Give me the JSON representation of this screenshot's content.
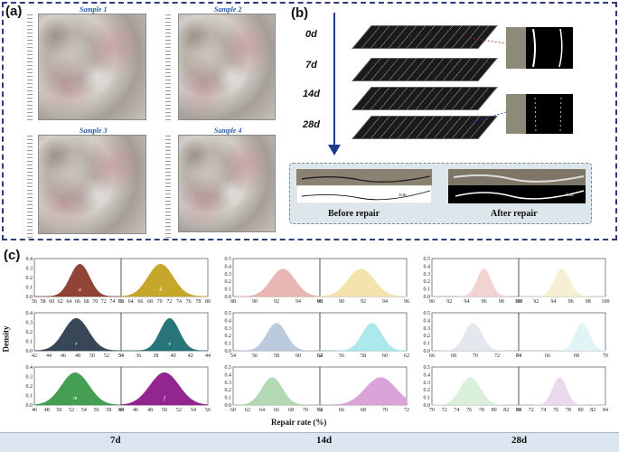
{
  "panel_a": {
    "label": "(a)",
    "samples": [
      {
        "title": "Sample 1"
      },
      {
        "title": "Sample 2"
      },
      {
        "title": "Sample 3"
      },
      {
        "title": "Sample 4"
      }
    ]
  },
  "panel_b": {
    "label": "(b)",
    "days": [
      "0d",
      "7d",
      "14d",
      "28d"
    ],
    "before_label": "Before repair",
    "after_label": "After repair",
    "scale_label": "1cm"
  },
  "panel_c": {
    "label": "(c)",
    "ylabel": "Density",
    "xlabel": "Repair rate (%)",
    "columns": [
      "7d",
      "14d",
      "28d"
    ]
  },
  "chart_data": {
    "type": "area",
    "ylabel": "Density",
    "xlabel": "Repair rate (%)",
    "groups": [
      {
        "period": "7d",
        "plots": [
          {
            "letter": "a",
            "color": "#8b3a2e",
            "mean": 66.5,
            "sd": 2.2,
            "xlim": [
              56,
              76
            ],
            "ticks": [
              56,
              58,
              60,
              62,
              64,
              66,
              68,
              70,
              72,
              74,
              76
            ],
            "ylim": [
              0,
              0.4
            ],
            "yticks": [
              0.0,
              0.1,
              0.2,
              0.3,
              0.4
            ]
          },
          {
            "letter": "k",
            "color": "#c4a320",
            "mean": 70.2,
            "sd": 2.6,
            "xlim": [
              62,
              80
            ],
            "ticks": [
              62,
              64,
              66,
              68,
              70,
              72,
              74,
              76,
              78,
              80
            ],
            "ylim": [
              0,
              0.4
            ],
            "yticks": [
              0.0,
              0.1,
              0.2,
              0.3,
              0.4
            ]
          },
          {
            "letter": "r",
            "color": "#2d3e50",
            "mean": 47.8,
            "sd": 1.7,
            "xlim": [
              42,
              54
            ],
            "ticks": [
              42,
              44,
              46,
              48,
              50,
              52,
              54
            ],
            "ylim": [
              0,
              0.4
            ],
            "yticks": [
              0.0,
              0.1,
              0.2,
              0.3,
              0.4
            ]
          },
          {
            "letter": "v",
            "color": "#1e6f73",
            "mean": 39.6,
            "sd": 1.1,
            "xlim": [
              34,
              44
            ],
            "ticks": [
              34,
              36,
              38,
              40,
              42,
              44
            ],
            "ylim": [
              0,
              0.4
            ],
            "yticks": [
              0.0,
              0.1,
              0.2,
              0.3,
              0.4
            ]
          },
          {
            "letter": "m",
            "color": "#3a9a4a",
            "mean": 52.6,
            "sd": 2.2,
            "xlim": [
              46,
              60
            ],
            "ticks": [
              46,
              48,
              50,
              52,
              54,
              56,
              58,
              60
            ],
            "ylim": [
              0,
              0.4
            ],
            "yticks": [
              0.0,
              0.1,
              0.2,
              0.3,
              0.4
            ]
          },
          {
            "letter": "f",
            "color": "#8e1a8c",
            "mean": 50.0,
            "sd": 2.0,
            "xlim": [
              44,
              56
            ],
            "ticks": [
              44,
              46,
              48,
              50,
              52,
              54,
              56
            ],
            "ylim": [
              0,
              0.4
            ],
            "yticks": [
              0.0,
              0.1,
              0.2,
              0.3,
              0.4
            ]
          }
        ]
      },
      {
        "period": "14d",
        "plots": [
          {
            "color": "#e8b3b0",
            "mean": 92.6,
            "sd": 1.1,
            "xlim": [
              88,
              96
            ],
            "ticks": [
              88,
              90,
              92,
              94,
              96
            ],
            "ylim": [
              0,
              0.5
            ],
            "yticks": [
              0.0,
              0.1,
              0.2,
              0.3,
              0.4,
              0.5
            ]
          },
          {
            "color": "#f4e2a8",
            "mean": 91.8,
            "sd": 1.2,
            "xlim": [
              88,
              96
            ],
            "ticks": [
              88,
              90,
              92,
              94,
              96
            ],
            "ylim": [
              0,
              0.5
            ],
            "yticks": [
              0.0,
              0.1,
              0.2,
              0.3,
              0.4,
              0.5
            ]
          },
          {
            "color": "#b9c8dc",
            "mean": 58.0,
            "sd": 0.9,
            "xlim": [
              54,
              62
            ],
            "ticks": [
              54,
              56,
              58,
              60,
              62
            ],
            "ylim": [
              0,
              0.5
            ],
            "yticks": [
              0.0,
              0.1,
              0.2,
              0.3,
              0.4,
              0.5
            ]
          },
          {
            "color": "#a8e8ec",
            "mean": 58.8,
            "sd": 0.9,
            "xlim": [
              54,
              62
            ],
            "ticks": [
              54,
              56,
              58,
              60,
              62
            ],
            "ylim": [
              0,
              0.5
            ],
            "yticks": [
              0.0,
              0.1,
              0.2,
              0.3,
              0.4,
              0.5
            ]
          },
          {
            "color": "#aed8b0",
            "mean": 65.4,
            "sd": 1.4,
            "xlim": [
              60,
              72
            ],
            "ticks": [
              60,
              62,
              64,
              66,
              68,
              70,
              72
            ],
            "ylim": [
              0,
              0.5
            ],
            "yticks": [
              0.0,
              0.1,
              0.2,
              0.3,
              0.4,
              0.5
            ]
          },
          {
            "color": "#d9a0d6",
            "mean": 69.6,
            "sd": 1.4,
            "xlim": [
              64,
              72
            ],
            "ticks": [
              64,
              66,
              68,
              70,
              72
            ],
            "ylim": [
              0,
              0.5
            ],
            "yticks": [
              0.0,
              0.1,
              0.2,
              0.3,
              0.4,
              0.5
            ]
          }
        ]
      },
      {
        "period": "28d",
        "plots": [
          {
            "color": "#f3d0d0",
            "mean": 96.0,
            "sd": 0.8,
            "xlim": [
              90,
              100
            ],
            "ticks": [
              90,
              92,
              94,
              96,
              98,
              100
            ],
            "ylim": [
              0,
              0.5
            ],
            "yticks": [
              0.0,
              0.1,
              0.2,
              0.3,
              0.4,
              0.5
            ]
          },
          {
            "color": "#f7efd1",
            "mean": 95.0,
            "sd": 0.9,
            "xlim": [
              90,
              100
            ],
            "ticks": [
              90,
              92,
              94,
              96,
              98,
              100
            ],
            "ylim": [
              0,
              0.5
            ],
            "yticks": [
              0.0,
              0.1,
              0.2,
              0.3,
              0.4,
              0.5
            ]
          },
          {
            "color": "#e3e6ee",
            "mean": 69.8,
            "sd": 0.8,
            "xlim": [
              66,
              74
            ],
            "ticks": [
              66,
              68,
              70,
              72,
              74
            ],
            "ylim": [
              0,
              0.5
            ],
            "yticks": [
              0.0,
              0.1,
              0.2,
              0.3,
              0.4,
              0.5
            ]
          },
          {
            "color": "#dff4f5",
            "mean": 68.4,
            "sd": 0.5,
            "xlim": [
              64,
              70
            ],
            "ticks": [
              64,
              66,
              68,
              70
            ],
            "ylim": [
              0,
              0.5
            ],
            "yticks": [
              0.0,
              0.1,
              0.2,
              0.3,
              0.4,
              0.5
            ]
          },
          {
            "color": "#d7efd8",
            "mean": 76.2,
            "sd": 1.6,
            "xlim": [
              70,
              84
            ],
            "ticks": [
              70,
              72,
              74,
              76,
              78,
              80,
              82,
              84
            ],
            "ylim": [
              0,
              0.5
            ],
            "yticks": [
              0.0,
              0.1,
              0.2,
              0.3,
              0.4,
              0.5
            ]
          },
          {
            "color": "#ecd6ec",
            "mean": 76.6,
            "sd": 1.1,
            "xlim": [
              70,
              84
            ],
            "ticks": [
              70,
              72,
              74,
              76,
              78,
              80,
              82,
              84
            ],
            "ylim": [
              0,
              0.5
            ],
            "yticks": [
              0.0,
              0.1,
              0.2,
              0.3,
              0.4,
              0.5
            ]
          }
        ]
      }
    ]
  }
}
